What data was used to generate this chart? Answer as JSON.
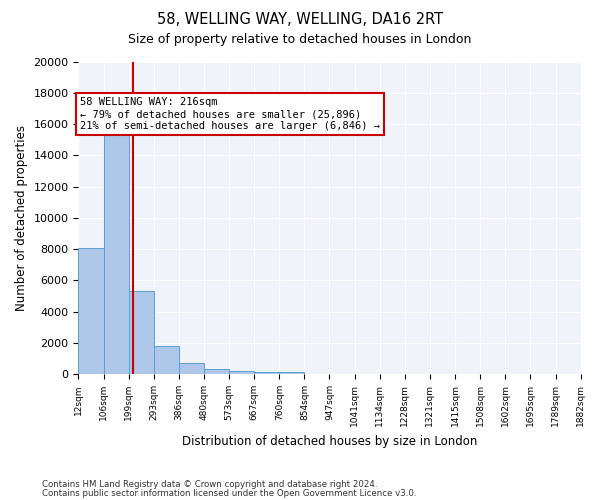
{
  "title1": "58, WELLING WAY, WELLING, DA16 2RT",
  "title2": "Size of property relative to detached houses in London",
  "xlabel": "Distribution of detached houses by size in London",
  "ylabel": "Number of detached properties",
  "bar_color": "#aec6e8",
  "bar_edge_color": "#5a9fd4",
  "background_color": "#f0f4fa",
  "grid_color": "#ffffff",
  "property_size": 216,
  "property_line_color": "#cc0000",
  "annotation_text_line1": "58 WELLING WAY: 216sqm",
  "annotation_text_line2": "← 79% of detached houses are smaller (25,896)",
  "annotation_text_line3": "21% of semi-detached houses are larger (6,846) →",
  "footer1": "Contains HM Land Registry data © Crown copyright and database right 2024.",
  "footer2": "Contains public sector information licensed under the Open Government Licence v3.0.",
  "bin_edges": [
    12,
    106,
    199,
    293,
    386,
    480,
    573,
    667,
    760,
    854,
    947,
    1041,
    1134,
    1228,
    1321,
    1415,
    1508,
    1602,
    1695,
    1789,
    1882
  ],
  "tick_labels": [
    "12sqm",
    "106sqm",
    "199sqm",
    "293sqm",
    "386sqm",
    "480sqm",
    "573sqm",
    "667sqm",
    "760sqm",
    "854sqm",
    "947sqm",
    "1041sqm",
    "1134sqm",
    "1228sqm",
    "1321sqm",
    "1415sqm",
    "1508sqm",
    "1602sqm",
    "1695sqm",
    "1789sqm",
    "1882sqm"
  ],
  "bar_heights": [
    8050,
    16500,
    5350,
    1800,
    700,
    330,
    210,
    175,
    130,
    0,
    0,
    0,
    0,
    0,
    0,
    0,
    0,
    0,
    0,
    0
  ],
  "ylim": [
    0,
    20000
  ],
  "yticks": [
    0,
    2000,
    4000,
    6000,
    8000,
    10000,
    12000,
    14000,
    16000,
    18000,
    20000
  ]
}
